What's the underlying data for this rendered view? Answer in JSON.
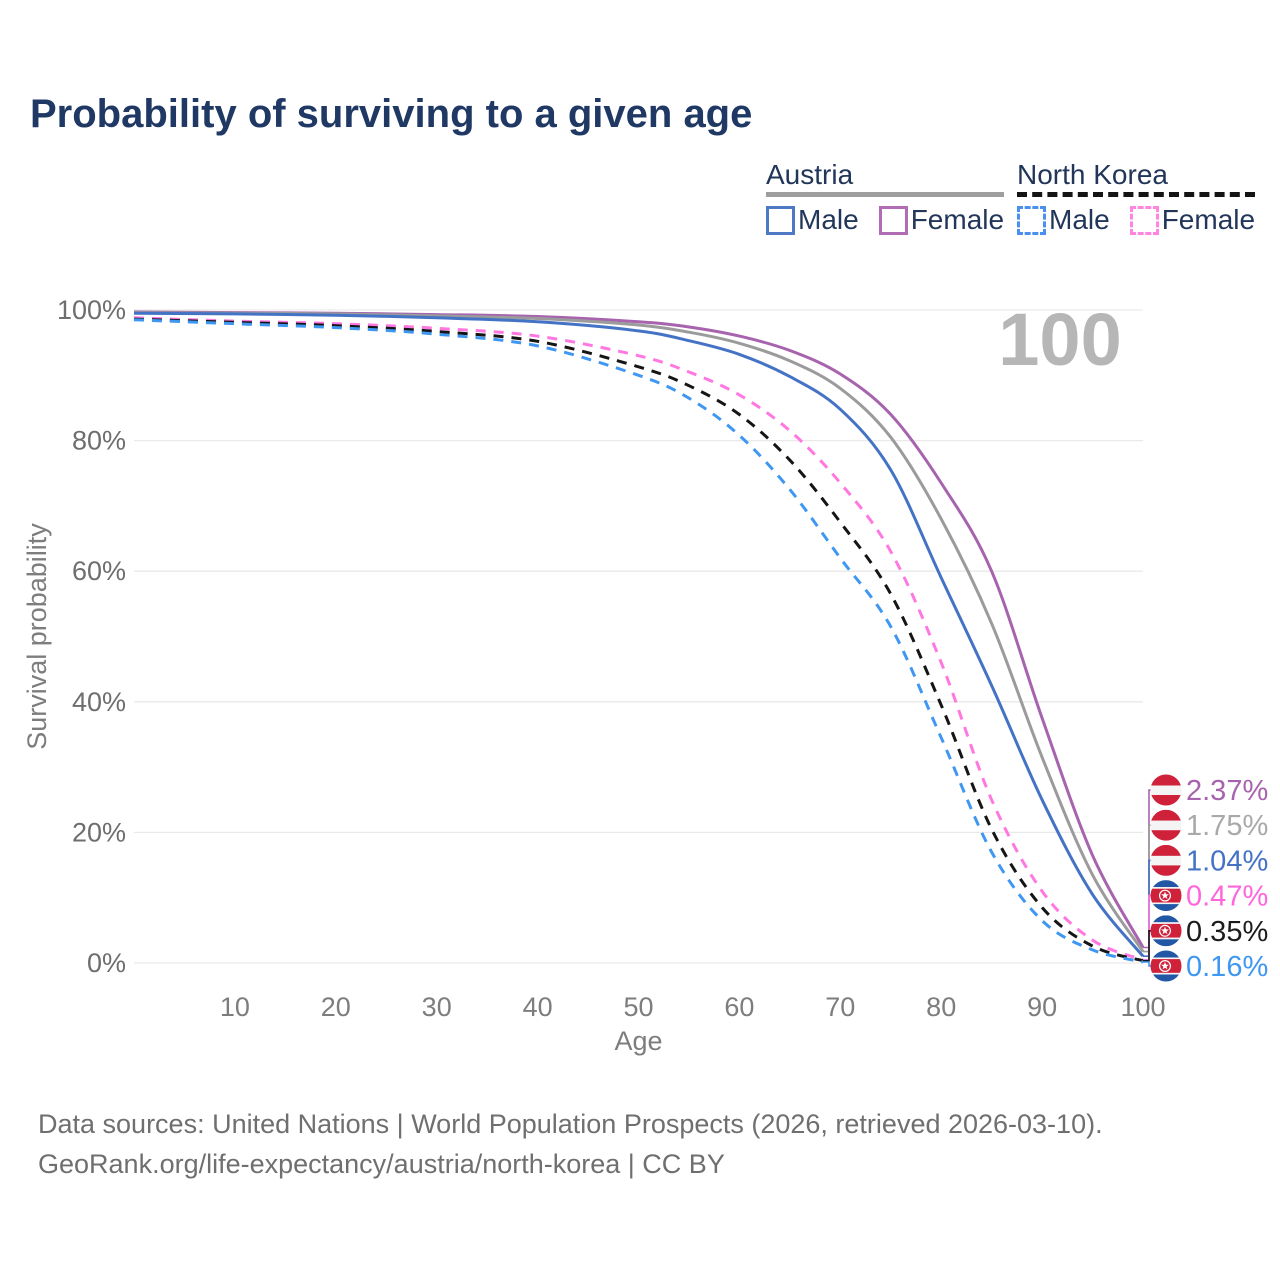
{
  "title": "Probability of surviving to a given age",
  "watermark_age": "100",
  "legend": {
    "groups": [
      {
        "label": "Austria",
        "line_style": "solid",
        "underline_color": "#9e9e9e",
        "items": [
          {
            "label": "Male",
            "color": "#4e79c4"
          },
          {
            "label": "Female",
            "color": "#b06cb5"
          }
        ]
      },
      {
        "label": "North Korea",
        "line_style": "dashed",
        "underline_color": "#141414",
        "items": [
          {
            "label": "Male",
            "color": "#4a90f0"
          },
          {
            "label": "Female",
            "color": "#ff85e0"
          }
        ]
      }
    ]
  },
  "footer": {
    "line1": "Data sources: United Nations | World Population Prospects (2026, retrieved 2026-03-10).",
    "line2": "GeoRank.org/life-expectancy/austria/north-korea | CC BY"
  },
  "colors": {
    "title_text": "#1f3864",
    "axis_text": "#6e6e6e",
    "tick_text": "#7d7d7d",
    "gridline": "#e9e9e9",
    "watermark": "#b6b6b6"
  },
  "chart_data": {
    "type": "line",
    "title": "Probability of surviving to a given age",
    "xlabel": "Age",
    "ylabel": "Survival probability",
    "xlim": [
      0,
      100
    ],
    "ylim": [
      0,
      100
    ],
    "grid": "horizontal-only",
    "legend_position": "top-right",
    "x_ticks": [
      10,
      20,
      30,
      40,
      50,
      60,
      70,
      80,
      90,
      100
    ],
    "y_ticks": [
      {
        "value": 0,
        "label": "0%"
      },
      {
        "value": 20,
        "label": "20%"
      },
      {
        "value": 40,
        "label": "40%"
      },
      {
        "value": 60,
        "label": "60%"
      },
      {
        "value": 80,
        "label": "80%"
      },
      {
        "value": 100,
        "label": "100%"
      }
    ],
    "x": [
      0,
      10,
      20,
      30,
      40,
      50,
      55,
      60,
      65,
      70,
      75,
      80,
      85,
      90,
      95,
      100
    ],
    "series": [
      {
        "name": "Austria Female",
        "country": "Austria",
        "sex": "Female",
        "flag": "austria",
        "color": "#a763ae",
        "dashed": false,
        "end_label": "2.37%",
        "end_label_color": "#a763ae",
        "values": [
          99.7,
          99.6,
          99.5,
          99.3,
          99.0,
          98.2,
          97.4,
          96.0,
          93.8,
          90.2,
          84.0,
          73.5,
          60.0,
          37.5,
          16.5,
          2.37
        ]
      },
      {
        "name": "Austria Both sexes",
        "country": "Austria",
        "sex": "Both",
        "flag": "austria",
        "color": "#9b9b9b",
        "dashed": false,
        "end_label": "1.75%",
        "end_label_color": "#a9a9a9",
        "values": [
          99.6,
          99.5,
          99.4,
          99.1,
          98.7,
          97.7,
          96.6,
          94.9,
          92.2,
          88.0,
          80.5,
          68.0,
          52.0,
          31.5,
          13.5,
          1.75
        ]
      },
      {
        "name": "Austria Male",
        "country": "Austria",
        "sex": "Male",
        "flag": "austria",
        "color": "#4473c5",
        "dashed": false,
        "end_label": "1.04%",
        "end_label_color": "#4473c5",
        "values": [
          99.5,
          99.4,
          99.2,
          98.8,
          98.2,
          96.8,
          95.3,
          93.2,
          89.8,
          84.8,
          75.5,
          59.0,
          42.5,
          25.0,
          10.5,
          1.04
        ]
      },
      {
        "name": "North Korea Female",
        "country": "North Korea",
        "sex": "Female",
        "flag": "north-korea",
        "color": "#ff78e2",
        "dashed": true,
        "end_label": "0.47%",
        "end_label_color": "#ff66dd",
        "values": [
          98.8,
          98.3,
          97.9,
          97.2,
          96.0,
          93.0,
          90.5,
          87.0,
          81.5,
          73.5,
          63.0,
          46.0,
          25.0,
          11.0,
          3.5,
          0.47
        ]
      },
      {
        "name": "North Korea Both sexes",
        "country": "North Korea",
        "sex": "Both",
        "flag": "north-korea",
        "color": "#151515",
        "dashed": true,
        "end_label": "0.35%",
        "end_label_color": "#1c1c1c",
        "values": [
          98.6,
          98.1,
          97.6,
          96.7,
          95.2,
          91.3,
          88.4,
          84.0,
          77.0,
          67.5,
          56.5,
          39.5,
          20.5,
          8.5,
          2.6,
          0.35
        ]
      },
      {
        "name": "North Korea Male",
        "country": "North Korea",
        "sex": "Male",
        "flag": "north-korea",
        "color": "#3f97f2",
        "dashed": true,
        "end_label": "0.16%",
        "end_label_color": "#3f97f2",
        "values": [
          98.5,
          97.9,
          97.3,
          96.3,
          94.5,
          90.0,
          86.5,
          80.8,
          72.5,
          62.0,
          51.5,
          34.5,
          17.0,
          6.5,
          2.0,
          0.16
        ]
      }
    ]
  }
}
